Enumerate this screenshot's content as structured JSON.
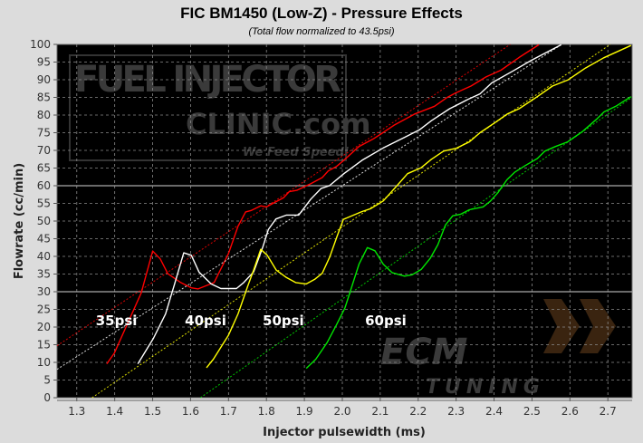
{
  "chart_data": {
    "type": "line",
    "title": "FIC BM1450 (Low-Z) - Pressure Effects",
    "subtitle": "(Total flow normalized to 43.5psi)",
    "xlabel": "Injector pulsewidth (ms)",
    "ylabel": "Flowrate (cc/min)",
    "xlim": [
      1.248,
      2.764
    ],
    "ylim": [
      0,
      100
    ],
    "xticks": [
      "1.3",
      "1.4",
      "1.5",
      "1.6",
      "1.7",
      "1.8",
      "1.9",
      "2.0",
      "2.1",
      "2.2",
      "2.3",
      "2.4",
      "2.5",
      "2.6",
      "2.7"
    ],
    "yticks": [
      "0",
      "5",
      "10",
      "15",
      "20",
      "25",
      "30",
      "35",
      "40",
      "45",
      "50",
      "55",
      "60",
      "65",
      "70",
      "75",
      "80",
      "85",
      "90",
      "95",
      "100"
    ],
    "grid": true,
    "reference_lines_y": [
      30,
      60
    ],
    "background": "#000000",
    "series": [
      {
        "name": "35psi",
        "color": "#ff0000",
        "trend": [
          [
            1.248,
            14.7
          ],
          [
            2.447,
            100.3
          ]
        ],
        "points": [
          [
            1.379,
            9.6
          ],
          [
            1.399,
            12.6
          ],
          [
            1.47,
            29.7
          ],
          [
            1.5,
            41.5
          ],
          [
            1.52,
            39.3
          ],
          [
            1.54,
            35.1
          ],
          [
            1.574,
            32.6
          ],
          [
            1.602,
            31.1
          ],
          [
            1.62,
            30.8
          ],
          [
            1.662,
            32.6
          ],
          [
            1.7,
            40.8
          ],
          [
            1.725,
            48.5
          ],
          [
            1.745,
            52.6
          ],
          [
            1.76,
            53
          ],
          [
            1.785,
            54.3
          ],
          [
            1.8,
            54
          ],
          [
            1.845,
            56.6
          ],
          [
            1.86,
            58.3
          ],
          [
            1.88,
            58.7
          ],
          [
            1.917,
            60.6
          ],
          [
            1.947,
            62.3
          ],
          [
            1.963,
            64.2
          ],
          [
            1.984,
            65.4
          ],
          [
            2.004,
            67.2
          ],
          [
            2.044,
            71.1
          ],
          [
            2.084,
            73.4
          ],
          [
            2.1,
            74.5
          ],
          [
            2.136,
            77.1
          ],
          [
            2.191,
            80.3
          ],
          [
            2.243,
            82.5
          ],
          [
            2.275,
            84.9
          ],
          [
            2.3,
            86.3
          ],
          [
            2.339,
            88.2
          ],
          [
            2.379,
            90.8
          ],
          [
            2.418,
            92.7
          ],
          [
            2.466,
            96.3
          ],
          [
            2.518,
            99.9
          ]
        ]
      },
      {
        "name": "40psi",
        "color": "#ffffff",
        "trend": [
          [
            1.252,
            8.3
          ],
          [
            2.577,
            99.9
          ]
        ],
        "points": [
          [
            1.461,
            9.6
          ],
          [
            1.502,
            16.8
          ],
          [
            1.534,
            23.7
          ],
          [
            1.558,
            32.2
          ],
          [
            1.582,
            41
          ],
          [
            1.602,
            40.3
          ],
          [
            1.622,
            35.6
          ],
          [
            1.654,
            32.2
          ],
          [
            1.68,
            30.9
          ],
          [
            1.721,
            30.9
          ],
          [
            1.74,
            32.6
          ],
          [
            1.766,
            35.6
          ],
          [
            1.79,
            42.5
          ],
          [
            1.805,
            47.6
          ],
          [
            1.825,
            50.6
          ],
          [
            1.853,
            51.7
          ],
          [
            1.885,
            51.7
          ],
          [
            1.917,
            56.2
          ],
          [
            1.944,
            59.2
          ],
          [
            1.966,
            60
          ],
          [
            2.004,
            63.4
          ],
          [
            2.052,
            67.2
          ],
          [
            2.108,
            70.7
          ],
          [
            2.164,
            73.7
          ],
          [
            2.203,
            75.8
          ],
          [
            2.235,
            78.4
          ],
          [
            2.283,
            81.8
          ],
          [
            2.331,
            84.4
          ],
          [
            2.363,
            86
          ],
          [
            2.394,
            89.1
          ],
          [
            2.45,
            92.5
          ],
          [
            2.498,
            95.5
          ],
          [
            2.577,
            99.9
          ]
        ]
      },
      {
        "name": "50psi",
        "color": "#ffff00",
        "trend": [
          [
            1.343,
            0.2
          ],
          [
            2.705,
            99.9
          ]
        ],
        "points": [
          [
            1.642,
            8.5
          ],
          [
            1.66,
            10.9
          ],
          [
            1.7,
            17.7
          ],
          [
            1.725,
            23.7
          ],
          [
            1.75,
            31.4
          ],
          [
            1.766,
            36.1
          ],
          [
            1.785,
            42
          ],
          [
            1.802,
            40.3
          ],
          [
            1.826,
            36.1
          ],
          [
            1.853,
            34
          ],
          [
            1.877,
            32.6
          ],
          [
            1.905,
            32.2
          ],
          [
            1.927,
            33.5
          ],
          [
            1.947,
            35.2
          ],
          [
            1.967,
            39.9
          ],
          [
            1.987,
            45.9
          ],
          [
            2.003,
            50.5
          ],
          [
            2.052,
            52.7
          ],
          [
            2.075,
            53.5
          ],
          [
            2.108,
            55.7
          ],
          [
            2.144,
            60
          ],
          [
            2.172,
            63.4
          ],
          [
            2.208,
            65.1
          ],
          [
            2.235,
            67.5
          ],
          [
            2.267,
            69.8
          ],
          [
            2.3,
            70.6
          ],
          [
            2.335,
            72.4
          ],
          [
            2.363,
            75
          ],
          [
            2.403,
            77.9
          ],
          [
            2.435,
            80.3
          ],
          [
            2.466,
            81.8
          ],
          [
            2.514,
            85.2
          ],
          [
            2.554,
            88.2
          ],
          [
            2.594,
            89.9
          ],
          [
            2.641,
            93.3
          ],
          [
            2.689,
            96.2
          ],
          [
            2.761,
            99.7
          ]
        ]
      },
      {
        "name": "60psi",
        "color": "#00e600",
        "trend": [
          [
            1.626,
            0
          ],
          [
            2.761,
            84.8
          ]
        ],
        "points": [
          [
            1.905,
            8.3
          ],
          [
            1.93,
            10.9
          ],
          [
            1.96,
            15.6
          ],
          [
            1.983,
            20.3
          ],
          [
            2.007,
            25.4
          ],
          [
            2.026,
            31.8
          ],
          [
            2.044,
            37.8
          ],
          [
            2.066,
            42.5
          ],
          [
            2.086,
            41.6
          ],
          [
            2.108,
            37.8
          ],
          [
            2.131,
            35.4
          ],
          [
            2.164,
            34.4
          ],
          [
            2.184,
            34.8
          ],
          [
            2.208,
            36.3
          ],
          [
            2.232,
            39.5
          ],
          [
            2.252,
            43.3
          ],
          [
            2.272,
            48.9
          ],
          [
            2.291,
            51.5
          ],
          [
            2.311,
            51.9
          ],
          [
            2.335,
            53.2
          ],
          [
            2.371,
            54
          ],
          [
            2.39,
            55.6
          ],
          [
            2.41,
            58
          ],
          [
            2.434,
            61.7
          ],
          [
            2.454,
            63.8
          ],
          [
            2.482,
            65.7
          ],
          [
            2.514,
            67.7
          ],
          [
            2.534,
            69.8
          ],
          [
            2.562,
            71.1
          ],
          [
            2.594,
            72.4
          ],
          [
            2.634,
            75.4
          ],
          [
            2.67,
            78.8
          ],
          [
            2.69,
            80.9
          ],
          [
            2.721,
            82.5
          ],
          [
            2.761,
            85.2
          ]
        ]
      }
    ],
    "annotations": [
      {
        "text": "35psi",
        "x": 1.35,
        "y": 20.5
      },
      {
        "text": "40psi",
        "x": 1.585,
        "y": 20.5
      },
      {
        "text": "50psi",
        "x": 1.79,
        "y": 20.5
      },
      {
        "text": "60psi",
        "x": 2.06,
        "y": 20.5
      }
    ]
  },
  "watermarks": {
    "top": [
      "FUEL INJECTOR",
      "CLINIC.com",
      "We Feed Speed!"
    ],
    "bottom": [
      "ECM",
      "TUNING"
    ]
  }
}
